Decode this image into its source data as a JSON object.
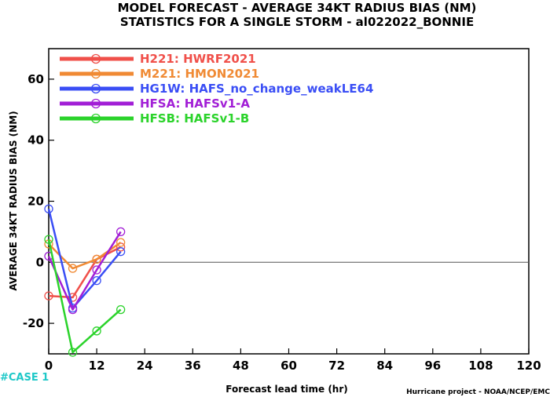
{
  "chart_data": {
    "type": "line",
    "title": "MODEL FORECAST - AVERAGE 34KT RADIUS BIAS (NM)",
    "subtitle": "STATISTICS FOR A SINGLE STORM - al022022_BONNIE",
    "xlabel": "Forecast lead time (hr)",
    "ylabel": "AVERAGE 34KT RADIUS BIAS (NM)",
    "xlim": [
      0,
      120
    ],
    "ylim": [
      -30,
      70
    ],
    "xticks": [
      "0",
      "12",
      "24",
      "36",
      "48",
      "60",
      "72",
      "84",
      "96",
      "108",
      "120"
    ],
    "yticks": [
      "-20",
      "0",
      "20",
      "40",
      "60"
    ],
    "zero_line": true,
    "grid": false,
    "legend_position": "top-left",
    "series": [
      {
        "name": "H221: HWRF2021",
        "color": "#f0504a",
        "x": [
          0,
          6,
          12,
          18
        ],
        "y": [
          -11,
          -11.5,
          1,
          5
        ]
      },
      {
        "name": "M221: HMON2021",
        "color": "#f08a34",
        "x": [
          0,
          6,
          12,
          18
        ],
        "y": [
          6,
          -2,
          1,
          6.5
        ]
      },
      {
        "name": "HG1W: HAFS_no_change_weakLE64",
        "color": "#3a4ef5",
        "x": [
          0,
          6,
          12,
          18
        ],
        "y": [
          17.5,
          -15,
          -6,
          3.5
        ]
      },
      {
        "name": "HFSA: HAFSv1-A",
        "color": "#a21fd6",
        "x": [
          0,
          6,
          12,
          18
        ],
        "y": [
          2,
          -15.5,
          -2.5,
          10
        ]
      },
      {
        "name": "HFSB: HAFSv1-B",
        "color": "#2bd32b",
        "x": [
          0,
          6,
          12,
          18
        ],
        "y": [
          7.5,
          -29.5,
          -22.5,
          -15.5
        ]
      }
    ]
  },
  "case_label": "#CASE  1",
  "credit": "Hurricane project - NOAA/NCEP/EMC"
}
